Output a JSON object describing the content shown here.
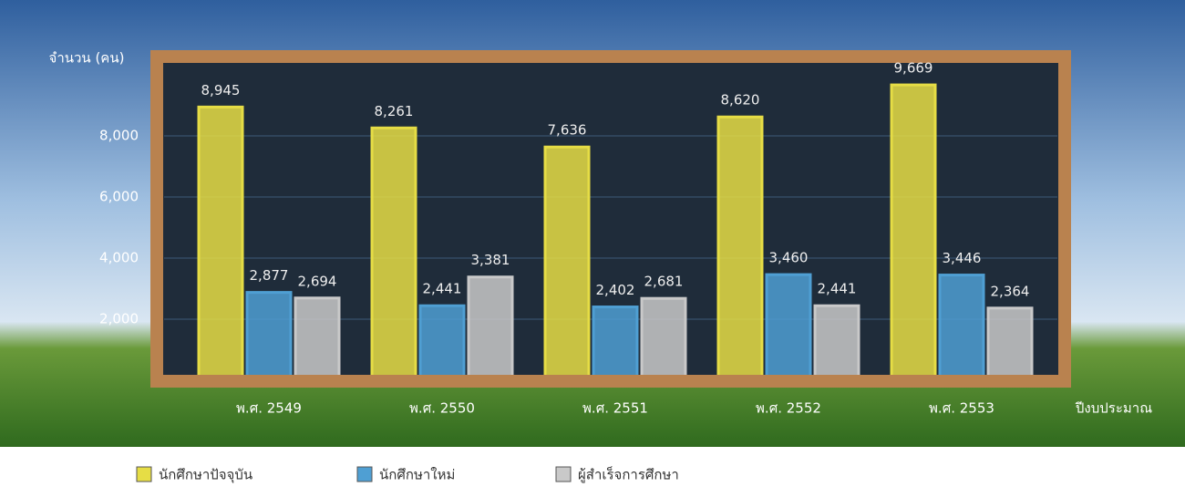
{
  "chart_data": {
    "type": "grouped_bar",
    "y_label": "จำนวน (คน)",
    "x_label": "ปีงบประมาณ",
    "categories": [
      "พ.ศ. 2549",
      "พ.ศ. 2550",
      "พ.ศ. 2551",
      "พ.ศ. 2552",
      "พ.ศ. 2553"
    ],
    "series": [
      {
        "name": "นักศึกษาปัจจุบัน",
        "color": "#e6dd45",
        "values": [
          8945,
          8261,
          7636,
          8620,
          9669
        ],
        "value_labels": [
          "8,945",
          "8,261",
          "7,636",
          "8,620",
          "9,669"
        ]
      },
      {
        "name": "นักศึกษาใหม่",
        "color": "#4f9fd3",
        "values": [
          2877,
          2441,
          2402,
          3460,
          3446
        ],
        "value_labels": [
          "2,877",
          "2,441",
          "2,402",
          "3,460",
          "3,446"
        ]
      },
      {
        "name": "ผู้สำเร็จการศึกษา",
        "color": "#c9c9c9",
        "values": [
          2694,
          3381,
          2681,
          2441,
          2364
        ],
        "value_labels": [
          "2,694",
          "3,381",
          "2,681",
          "2,441",
          "2,364"
        ]
      }
    ],
    "ylim": [
      0,
      10000
    ],
    "yticks": [
      {
        "value": 2000,
        "label": "2,000"
      },
      {
        "value": 4000,
        "label": "4,000"
      },
      {
        "value": 6000,
        "label": "6,000"
      },
      {
        "value": 8000,
        "label": "8,000"
      }
    ],
    "grid": true
  }
}
